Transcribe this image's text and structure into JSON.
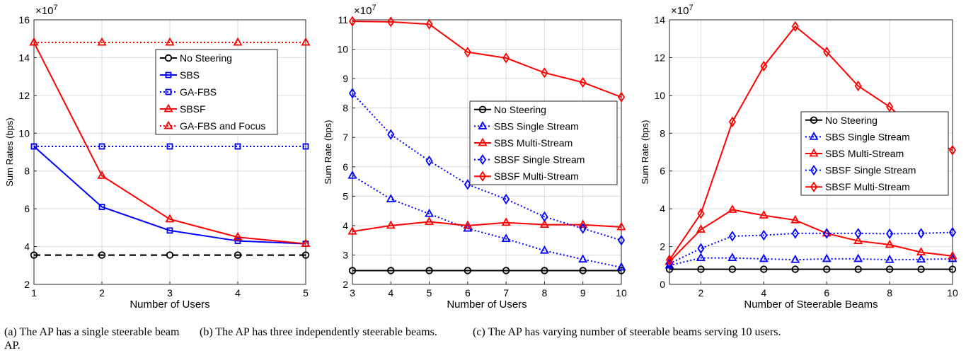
{
  "chart_data": [
    {
      "type": "line",
      "caption": "(a) The AP has a single steerable beam AP.",
      "xlabel": "Number of Users",
      "ylabel": "Sum Rates (bps)",
      "exponent": "×10",
      "exponent_power": "7",
      "xlim": [
        1,
        5
      ],
      "ylim": [
        2,
        16
      ],
      "xticks": [
        1,
        2,
        3,
        4,
        5
      ],
      "yticks": [
        2,
        4,
        6,
        8,
        10,
        12,
        14,
        16
      ],
      "grid": true,
      "legend_position": "top-right",
      "series": [
        {
          "name": "No Steering",
          "color": "#000000",
          "dash": "dashed",
          "marker": "circle",
          "x": [
            1,
            2,
            3,
            4,
            5
          ],
          "y": [
            3.55,
            3.55,
            3.55,
            3.55,
            3.55
          ]
        },
        {
          "name": "SBS",
          "color": "#0000ff",
          "dash": "solid",
          "marker": "square",
          "x": [
            1,
            2,
            3,
            4,
            5
          ],
          "y": [
            9.3,
            6.1,
            4.85,
            4.3,
            4.15
          ]
        },
        {
          "name": "GA-FBS",
          "color": "#0000ff",
          "dash": "dotted",
          "marker": "square",
          "x": [
            1,
            2,
            3,
            4,
            5
          ],
          "y": [
            9.3,
            9.3,
            9.3,
            9.3,
            9.3
          ]
        },
        {
          "name": "SBSF",
          "color": "#ff0000",
          "dash": "solid",
          "marker": "triangle",
          "x": [
            1,
            2,
            3,
            4,
            5
          ],
          "y": [
            14.8,
            7.75,
            5.45,
            4.5,
            4.15
          ]
        },
        {
          "name": "GA-FBS and Focus",
          "color": "#ff0000",
          "dash": "dotted",
          "marker": "triangle",
          "x": [
            1,
            2,
            3,
            4,
            5
          ],
          "y": [
            14.8,
            14.8,
            14.8,
            14.8,
            14.8
          ]
        }
      ]
    },
    {
      "type": "line",
      "caption": "(b) The AP has three independently steerable beams.",
      "xlabel": "Number of Users",
      "ylabel": "Sum Rate (bps)",
      "exponent": "×10",
      "exponent_power": "7",
      "xlim": [
        3,
        10
      ],
      "ylim": [
        2,
        11
      ],
      "xticks": [
        3,
        4,
        5,
        6,
        7,
        8,
        9,
        10
      ],
      "yticks": [
        2,
        3,
        4,
        5,
        6,
        7,
        8,
        9,
        10,
        11
      ],
      "grid": true,
      "legend_position": "right",
      "series": [
        {
          "name": "No Steering",
          "color": "#000000",
          "dash": "solid",
          "marker": "circle",
          "x": [
            3,
            4,
            5,
            6,
            7,
            8,
            9,
            10
          ],
          "y": [
            2.47,
            2.47,
            2.47,
            2.47,
            2.47,
            2.47,
            2.47,
            2.47
          ]
        },
        {
          "name": "SBS Single Stream",
          "color": "#0000ff",
          "dash": "dotted",
          "marker": "triangle",
          "x": [
            3,
            4,
            5,
            6,
            7,
            8,
            9,
            10
          ],
          "y": [
            5.7,
            4.9,
            4.4,
            3.9,
            3.55,
            3.15,
            2.85,
            2.58
          ]
        },
        {
          "name": "SBS Multi-Stream",
          "color": "#ff0000",
          "dash": "solid",
          "marker": "triangle",
          "x": [
            3,
            4,
            5,
            6,
            7,
            8,
            9,
            10
          ],
          "y": [
            3.8,
            4.0,
            4.13,
            4.0,
            4.1,
            4.03,
            4.03,
            3.95
          ]
        },
        {
          "name": "SBSF Single Stream",
          "color": "#0000ff",
          "dash": "dotted",
          "marker": "diamond",
          "x": [
            3,
            4,
            5,
            6,
            7,
            8,
            9,
            10
          ],
          "y": [
            8.5,
            7.1,
            6.2,
            5.4,
            4.9,
            4.3,
            3.9,
            3.5
          ]
        },
        {
          "name": "SBSF Multi-Stream",
          "color": "#ff0000",
          "dash": "solid",
          "marker": "diamond",
          "x": [
            3,
            4,
            5,
            6,
            7,
            8,
            9,
            10
          ],
          "y": [
            10.95,
            10.93,
            10.85,
            9.9,
            9.7,
            9.2,
            8.87,
            8.37
          ]
        }
      ]
    },
    {
      "type": "line",
      "caption": "(c) The AP has varying number of steerable beams serving 10 users.",
      "xlabel": "Number of Steerable Beams",
      "ylabel": "Sum Rate (bps)",
      "exponent": "×10",
      "exponent_power": "7",
      "xlim": [
        1,
        10
      ],
      "ylim": [
        0,
        14
      ],
      "xticks": [
        2,
        4,
        6,
        8,
        10
      ],
      "yticks": [
        0,
        2,
        4,
        6,
        8,
        10,
        12,
        14
      ],
      "grid": true,
      "legend_position": "right",
      "series": [
        {
          "name": "No Steering",
          "color": "#000000",
          "dash": "solid",
          "marker": "circle",
          "x": [
            1,
            2,
            3,
            4,
            5,
            6,
            7,
            8,
            9,
            10
          ],
          "y": [
            0.8,
            0.8,
            0.8,
            0.8,
            0.8,
            0.8,
            0.8,
            0.8,
            0.8,
            0.8
          ]
        },
        {
          "name": "SBS Single Stream",
          "color": "#0000ff",
          "dash": "dotted",
          "marker": "triangle",
          "x": [
            1,
            2,
            3,
            4,
            5,
            6,
            7,
            8,
            9,
            10
          ],
          "y": [
            1.0,
            1.4,
            1.4,
            1.35,
            1.3,
            1.35,
            1.35,
            1.3,
            1.32,
            1.35
          ]
        },
        {
          "name": "SBS Multi-Stream",
          "color": "#ff0000",
          "dash": "solid",
          "marker": "triangle",
          "x": [
            1,
            2,
            3,
            4,
            5,
            6,
            7,
            8,
            9,
            10
          ],
          "y": [
            1.2,
            2.9,
            3.95,
            3.65,
            3.4,
            2.7,
            2.3,
            2.1,
            1.7,
            1.5
          ]
        },
        {
          "name": "SBSF Single Stream",
          "color": "#0000ff",
          "dash": "dotted",
          "marker": "diamond",
          "x": [
            1,
            2,
            3,
            4,
            5,
            6,
            7,
            8,
            9,
            10
          ],
          "y": [
            1.1,
            1.9,
            2.55,
            2.6,
            2.7,
            2.7,
            2.7,
            2.68,
            2.7,
            2.75
          ]
        },
        {
          "name": "SBSF Multi-Stream",
          "color": "#ff0000",
          "dash": "solid",
          "marker": "diamond",
          "x": [
            1,
            2,
            3,
            4,
            5,
            6,
            7,
            8,
            9,
            10
          ],
          "y": [
            1.3,
            3.75,
            8.6,
            11.55,
            13.65,
            12.3,
            10.5,
            9.4,
            7.85,
            7.1
          ]
        }
      ]
    }
  ]
}
